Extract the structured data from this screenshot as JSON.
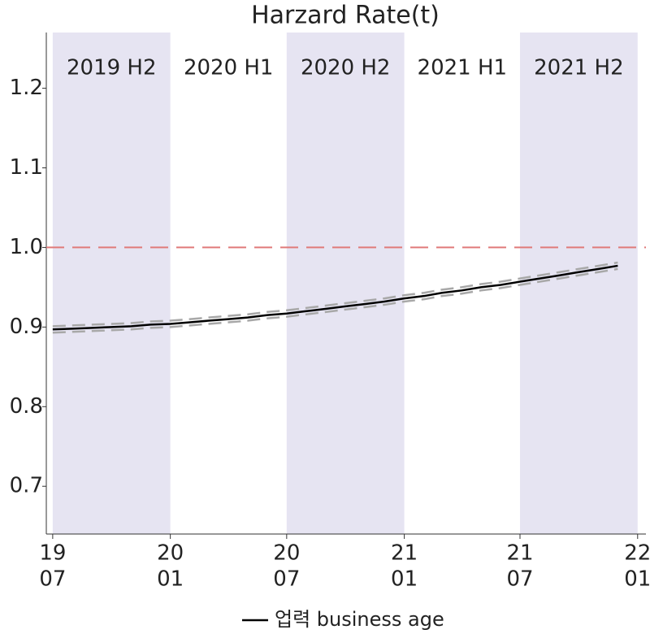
{
  "chart_data": {
    "type": "line",
    "title": "Harzard Rate(t)",
    "x": [
      "2019-07",
      "2019-08",
      "2019-09",
      "2019-10",
      "2019-11",
      "2019-12",
      "2020-01",
      "2020-02",
      "2020-03",
      "2020-04",
      "2020-05",
      "2020-06",
      "2020-07",
      "2020-08",
      "2020-09",
      "2020-10",
      "2020-11",
      "2020-12",
      "2021-01",
      "2021-02",
      "2021-03",
      "2021-04",
      "2021-05",
      "2021-06",
      "2021-07",
      "2021-08",
      "2021-09",
      "2021-10",
      "2021-11",
      "2021-12"
    ],
    "series": [
      {
        "name": "업력 business age",
        "color": "#000000",
        "values": [
          0.897,
          0.898,
          0.899,
          0.9,
          0.901,
          0.903,
          0.904,
          0.906,
          0.908,
          0.91,
          0.912,
          0.915,
          0.917,
          0.92,
          0.923,
          0.926,
          0.929,
          0.932,
          0.936,
          0.939,
          0.943,
          0.946,
          0.95,
          0.953,
          0.957,
          0.961,
          0.965,
          0.969,
          0.973,
          0.977
        ]
      }
    ],
    "ci_lower": [
      0.893,
      0.894,
      0.895,
      0.896,
      0.897,
      0.899,
      0.9,
      0.902,
      0.904,
      0.906,
      0.908,
      0.911,
      0.913,
      0.916,
      0.919,
      0.922,
      0.925,
      0.928,
      0.932,
      0.935,
      0.939,
      0.942,
      0.946,
      0.949,
      0.953,
      0.957,
      0.961,
      0.965,
      0.969,
      0.973
    ],
    "ci_upper": [
      0.901,
      0.902,
      0.903,
      0.904,
      0.905,
      0.907,
      0.908,
      0.91,
      0.912,
      0.914,
      0.916,
      0.919,
      0.921,
      0.924,
      0.927,
      0.93,
      0.933,
      0.936,
      0.94,
      0.943,
      0.947,
      0.95,
      0.954,
      0.957,
      0.961,
      0.965,
      0.969,
      0.973,
      0.977,
      0.981
    ],
    "ci_color": "#a8a8a8",
    "refline": {
      "value": 1,
      "color": "#e07a7a"
    },
    "periods": [
      {
        "label": "2019 H2",
        "start": "2019-07",
        "end": "2020-01",
        "shaded": true
      },
      {
        "label": "2020 H1",
        "start": "2020-01",
        "end": "2020-07",
        "shaded": false
      },
      {
        "label": "2020 H2",
        "start": "2020-07",
        "end": "2021-01",
        "shaded": true
      },
      {
        "label": "2021 H1",
        "start": "2021-01",
        "end": "2021-07",
        "shaded": false
      },
      {
        "label": "2021 H2",
        "start": "2021-07",
        "end": "2022-01",
        "shaded": true
      }
    ],
    "shade_color": "#e6e4f2",
    "xlim": [
      "2019-06-21",
      "2022-01-14"
    ],
    "xticks": [
      {
        "value": "2019-07",
        "label": [
          "19",
          "07"
        ]
      },
      {
        "value": "2020-01",
        "label": [
          "20",
          "01"
        ]
      },
      {
        "value": "2020-07",
        "label": [
          "20",
          "07"
        ]
      },
      {
        "value": "2021-01",
        "label": [
          "21",
          "01"
        ]
      },
      {
        "value": "2021-07",
        "label": [
          "21",
          "07"
        ]
      },
      {
        "value": "2022-01",
        "label": [
          "22",
          "01"
        ]
      }
    ],
    "ylim": [
      0.64,
      1.27
    ],
    "yticks": [
      0.7,
      0.8,
      0.9,
      {
        "value": 1,
        "label": "1.0"
      },
      1.1,
      1.2
    ]
  }
}
